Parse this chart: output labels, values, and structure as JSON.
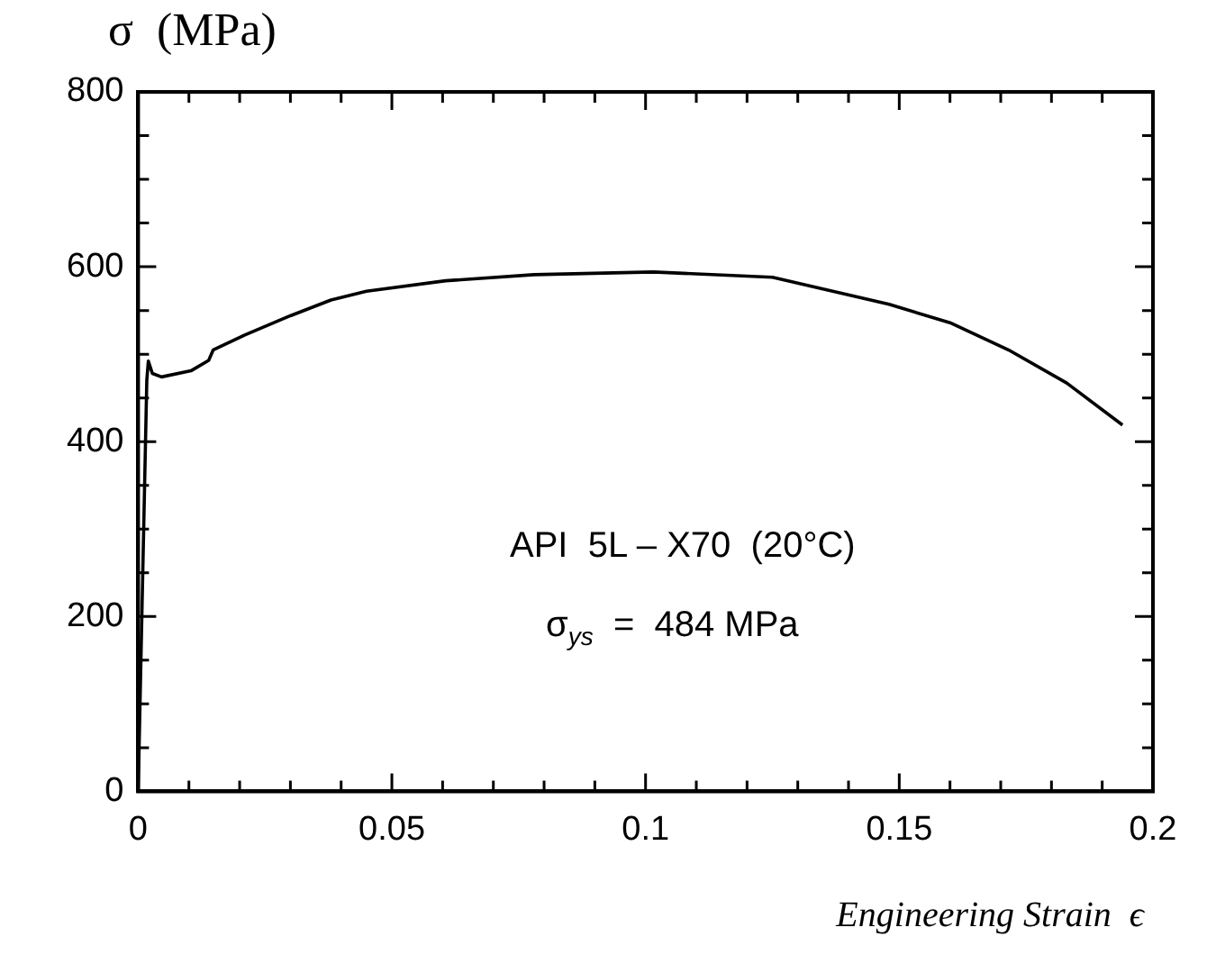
{
  "chart_data": {
    "type": "line",
    "xlabel": "Engineering Strain  ϵ",
    "ylabel": "σ  (MPa)",
    "annotations": [
      "API  5L – X70  (20°C)",
      "σ$_{ys}$  =  484 MPa"
    ],
    "x": [
      0,
      0.0017,
      0.002,
      0.0028,
      0.0046,
      0.0104,
      0.0139,
      0.0148,
      0.021,
      0.03,
      0.038,
      0.045,
      0.0606,
      0.078,
      0.1015,
      0.125,
      0.148,
      0.16,
      0.1715,
      0.183,
      0.194
    ],
    "series": [
      {
        "color": "#000000",
        "values": [
          0,
          470,
          492,
          478,
          474,
          481,
          493,
          505,
          522,
          544,
          562,
          572,
          584,
          591,
          594,
          588,
          557,
          536,
          505,
          467,
          419
        ]
      }
    ],
    "xlim": [
      0,
      0.2
    ],
    "ylim": [
      0,
      800
    ],
    "xticks": [
      0,
      {
        "value": 0.01,
        "label": null
      },
      {
        "value": 0.02,
        "label": null
      },
      {
        "value": 0.03,
        "label": null
      },
      {
        "value": 0.04,
        "label": null
      },
      0.05,
      {
        "value": 0.06,
        "label": null
      },
      {
        "value": 0.07,
        "label": null
      },
      {
        "value": 0.08,
        "label": null
      },
      {
        "value": 0.09,
        "label": null
      },
      0.1,
      {
        "value": 0.11,
        "label": null
      },
      {
        "value": 0.12,
        "label": null
      },
      {
        "value": 0.13,
        "label": null
      },
      {
        "value": 0.14,
        "label": null
      },
      0.15,
      {
        "value": 0.16,
        "label": null
      },
      {
        "value": 0.17,
        "label": null
      },
      {
        "value": 0.18,
        "label": null
      },
      {
        "value": 0.19,
        "label": null
      },
      0.2
    ],
    "yticks": [
      0,
      {
        "value": 50,
        "label": null
      },
      {
        "value": 100,
        "label": null
      },
      {
        "value": 150,
        "label": null
      },
      200,
      {
        "value": 250,
        "label": null
      },
      {
        "value": 300,
        "label": null
      },
      {
        "value": 350,
        "label": null
      },
      400,
      {
        "value": 450,
        "label": null
      },
      {
        "value": 500,
        "label": null
      },
      {
        "value": 550,
        "label": null
      },
      600,
      {
        "value": 650,
        "label": null
      },
      {
        "value": 700,
        "label": null
      },
      {
        "value": 750,
        "label": null
      },
      800
    ],
    "grid": false,
    "legend": false,
    "marker": "none",
    "line_style": "solid"
  }
}
